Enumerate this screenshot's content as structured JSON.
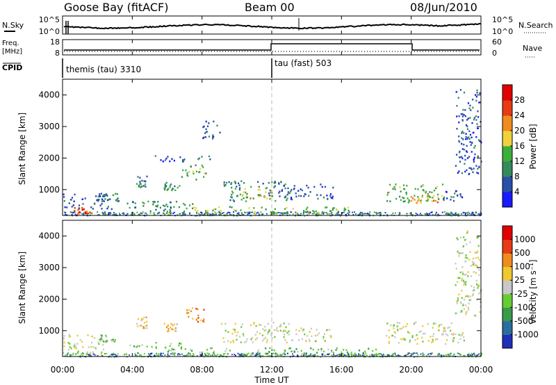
{
  "header": {
    "station": "Goose Bay (fitACF)",
    "beam": "Beam 00",
    "date": "08/Jun/2010"
  },
  "noise_panel": {
    "left_label": "N.Sky",
    "right_label": "N.Search",
    "left_ticks": [
      "10^5",
      "10^0"
    ],
    "right_ticks": [
      "10^5",
      "10^0"
    ]
  },
  "freq_panel": {
    "left_label_line1": "Freq.",
    "left_label_line2": "[MHz]",
    "right_label": "Nave",
    "left_ticks": [
      "18",
      "8"
    ],
    "right_ticks": [
      "60",
      "0"
    ]
  },
  "cpid_panel": {
    "label": "CPID",
    "modes": [
      {
        "name": "themis (tau) 3310",
        "start_hour": 0
      },
      {
        "name": "tau (fast) 503",
        "start_hour": 12
      }
    ]
  },
  "xaxis": {
    "title": "Time UT",
    "ticks": [
      "00:00",
      "04:00",
      "08:00",
      "12:00",
      "16:00",
      "20:00",
      "00:00"
    ],
    "tick_hours": [
      0,
      4,
      8,
      12,
      16,
      20,
      24
    ]
  },
  "chart_data": [
    {
      "type": "heatmap",
      "name": "power",
      "ylabel": "Slant Range [km]",
      "yticks": [
        "1000",
        "2000",
        "3000",
        "4000"
      ],
      "ylim": [
        180,
        4500
      ],
      "xlim": [
        0,
        24
      ],
      "colorbar": {
        "label": "Power [dB]",
        "ticks": [
          "4",
          "8",
          "12",
          "16",
          "20",
          "24",
          "28"
        ],
        "colors": [
          "#1a1aff",
          "#2a4fa8",
          "#36895c",
          "#3cae3c",
          "#f0d23c",
          "#f08c1e",
          "#e83a14",
          "#e00000"
        ]
      },
      "regions": [
        {
          "t": [
            0.6,
            1.6
          ],
          "r": [
            250,
            450
          ],
          "level": 6
        },
        {
          "t": [
            0.0,
            2.8
          ],
          "r": [
            400,
            900
          ],
          "level": 1
        },
        {
          "t": [
            2.0,
            3.2
          ],
          "r": [
            650,
            900
          ],
          "level": 2
        },
        {
          "t": [
            3.5,
            7.5
          ],
          "r": [
            450,
            650
          ],
          "level": 2
        },
        {
          "t": [
            5.0,
            6.2
          ],
          "r": [
            250,
            650
          ],
          "level": 2
        },
        {
          "t": [
            4.2,
            4.8
          ],
          "r": [
            1100,
            1450
          ],
          "level": 2
        },
        {
          "t": [
            5.8,
            6.7
          ],
          "r": [
            1000,
            1250
          ],
          "level": 2
        },
        {
          "t": [
            6.8,
            8.2
          ],
          "r": [
            1300,
            1800
          ],
          "level": 3
        },
        {
          "t": [
            6.0,
            16.5
          ],
          "r": [
            200,
            480
          ],
          "level": 3
        },
        {
          "t": [
            9.2,
            13.0
          ],
          "r": [
            650,
            1300
          ],
          "level": 2
        },
        {
          "t": [
            10.2,
            12.0
          ],
          "r": [
            700,
            1050
          ],
          "level": 4
        },
        {
          "t": [
            12.5,
            15.5
          ],
          "r": [
            700,
            1200
          ],
          "level": 1
        },
        {
          "t": [
            18.5,
            21.8
          ],
          "r": [
            600,
            1200
          ],
          "level": 3
        },
        {
          "t": [
            19.8,
            21.5
          ],
          "r": [
            600,
            900
          ],
          "level": 5
        },
        {
          "t": [
            21.8,
            23.0
          ],
          "r": [
            650,
            1000
          ],
          "level": 1
        },
        {
          "t": [
            22.5,
            24.0
          ],
          "r": [
            1500,
            4200
          ],
          "level": 1
        },
        {
          "t": [
            5.0,
            8.5
          ],
          "r": [
            1900,
            2100
          ],
          "level": 1
        },
        {
          "t": [
            8.0,
            9.0
          ],
          "r": [
            2600,
            3200
          ],
          "level": 1
        }
      ]
    },
    {
      "type": "heatmap",
      "name": "velocity",
      "ylabel": "Slant Range [km]",
      "yticks": [
        "1000",
        "2000",
        "3000",
        "4000"
      ],
      "ylim": [
        180,
        4500
      ],
      "xlim": [
        0,
        24
      ],
      "colorbar": {
        "label": "Velocity [m s⁻¹]",
        "ticks": [
          "1000",
          "500",
          "100",
          "25",
          "-25",
          "-100",
          "-500",
          "-1000"
        ],
        "colors": [
          "#1f2fb8",
          "#2a6e9e",
          "#3a9a4a",
          "#66cc33",
          "#c8c8c8",
          "#f0c830",
          "#f08c1e",
          "#e83a14",
          "#e00000"
        ]
      },
      "regions": [
        {
          "t": [
            0.0,
            2.4
          ],
          "r": [
            250,
            900
          ],
          "level": 4
        },
        {
          "t": [
            2.0,
            3.0
          ],
          "r": [
            650,
            900
          ],
          "level": 3
        },
        {
          "t": [
            3.8,
            7.0
          ],
          "r": [
            450,
            650
          ],
          "level": 3
        },
        {
          "t": [
            4.2,
            4.8
          ],
          "r": [
            1100,
            1450
          ],
          "level": 5
        },
        {
          "t": [
            5.8,
            6.6
          ],
          "r": [
            1000,
            1250
          ],
          "level": 5
        },
        {
          "t": [
            7.0,
            8.1
          ],
          "r": [
            1300,
            1800
          ],
          "level": 6
        },
        {
          "t": [
            6.0,
            18.0
          ],
          "r": [
            200,
            480
          ],
          "level": 3
        },
        {
          "t": [
            9.0,
            13.0
          ],
          "r": [
            650,
            1300
          ],
          "level": 4
        },
        {
          "t": [
            13.0,
            15.5
          ],
          "r": [
            650,
            1100
          ],
          "level": 4
        },
        {
          "t": [
            18.5,
            23.0
          ],
          "r": [
            600,
            1300
          ],
          "level": 4
        },
        {
          "t": [
            22.5,
            24.0
          ],
          "r": [
            1500,
            4200
          ],
          "level": 4
        }
      ]
    }
  ]
}
